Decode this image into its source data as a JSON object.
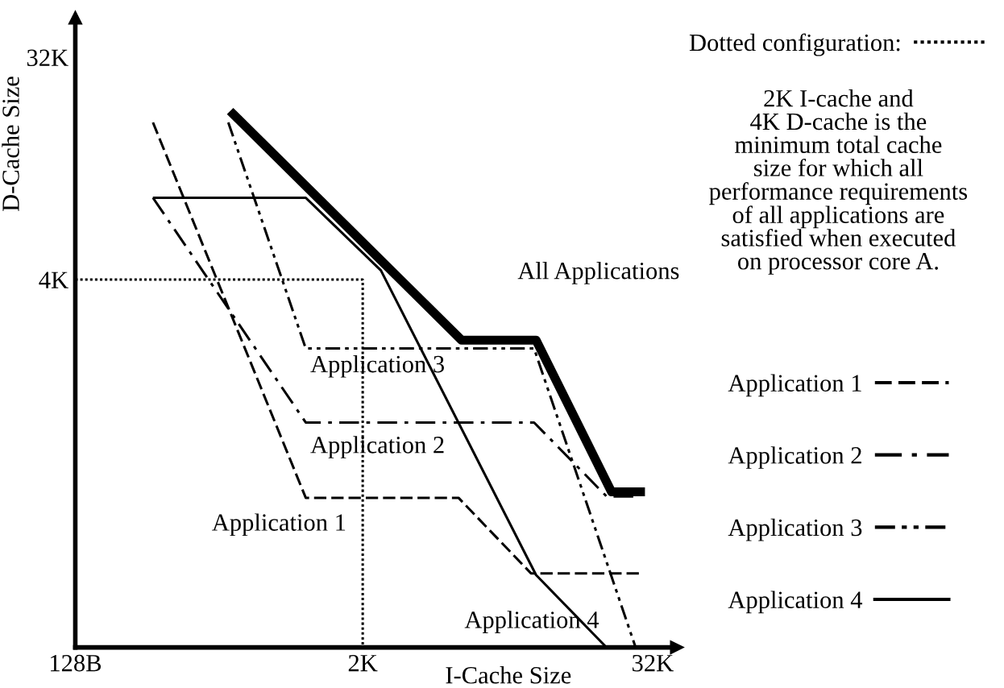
{
  "chart_data": {
    "type": "line",
    "xlabel": "I-Cache Size",
    "ylabel": "D-Cache Size",
    "log": "xy",
    "xlim": [
      128,
      40300
    ],
    "ylim": [
      128,
      46300
    ],
    "xticks": [
      {
        "value": 128,
        "label": "128B"
      },
      {
        "value": 2000,
        "label": "2K"
      },
      {
        "value": 32000,
        "label": "32K"
      }
    ],
    "yticks": [
      {
        "value": 128,
        "label": null
      },
      {
        "value": 4000,
        "label": "4K"
      },
      {
        "value": 32000,
        "label": "32K"
      }
    ],
    "grid": false,
    "legend": "right",
    "marker": "none",
    "series": [
      {
        "name": "Dotted configuration:",
        "color": "#000000",
        "line_style": "dotted",
        "x": [
          128,
          2000,
          2000
        ],
        "values": [
          4000,
          4000,
          128
        ]
      },
      {
        "name": "Application 1",
        "color": "#000000",
        "line_style": "dashed",
        "x": [
          269,
          1160,
          5000,
          10000,
          29300
        ],
        "values": [
          17400,
          519,
          519,
          256,
          256
        ]
      },
      {
        "name": "Application 2",
        "color": "#000000",
        "line_style": "dashdot",
        "x": [
          269,
          1160,
          10300,
          20600,
          28500
        ],
        "values": [
          8600,
          1050,
          1050,
          526,
          526
        ]
      },
      {
        "name": "Application 3",
        "color": "#000000",
        "line_style": "dashdotdot",
        "x": [
          553,
          1160,
          10300,
          27200
        ],
        "values": [
          17400,
          2100,
          2100,
          128
        ]
      },
      {
        "name": "Application 4",
        "color": "#000000",
        "line_style": "solid",
        "x": [
          272,
          1160,
          2380,
          10500,
          20600
        ],
        "values": [
          8600,
          8600,
          4360,
          252,
          128
        ]
      },
      {
        "name": "All Applications",
        "color": "#000000",
        "line_style": "solid",
        "x": [
          580,
          5150,
          10500,
          21600,
          28500
        ],
        "values": [
          18800,
          2270,
          2270,
          549,
          549
        ]
      }
    ],
    "annotations": [
      "2K I-cache and\n4K D-cache is the\nminimum total cache\nsize for which all\nperformance requirements\nof all applications are\nsatisfied when executed\non processor core A."
    ]
  }
}
